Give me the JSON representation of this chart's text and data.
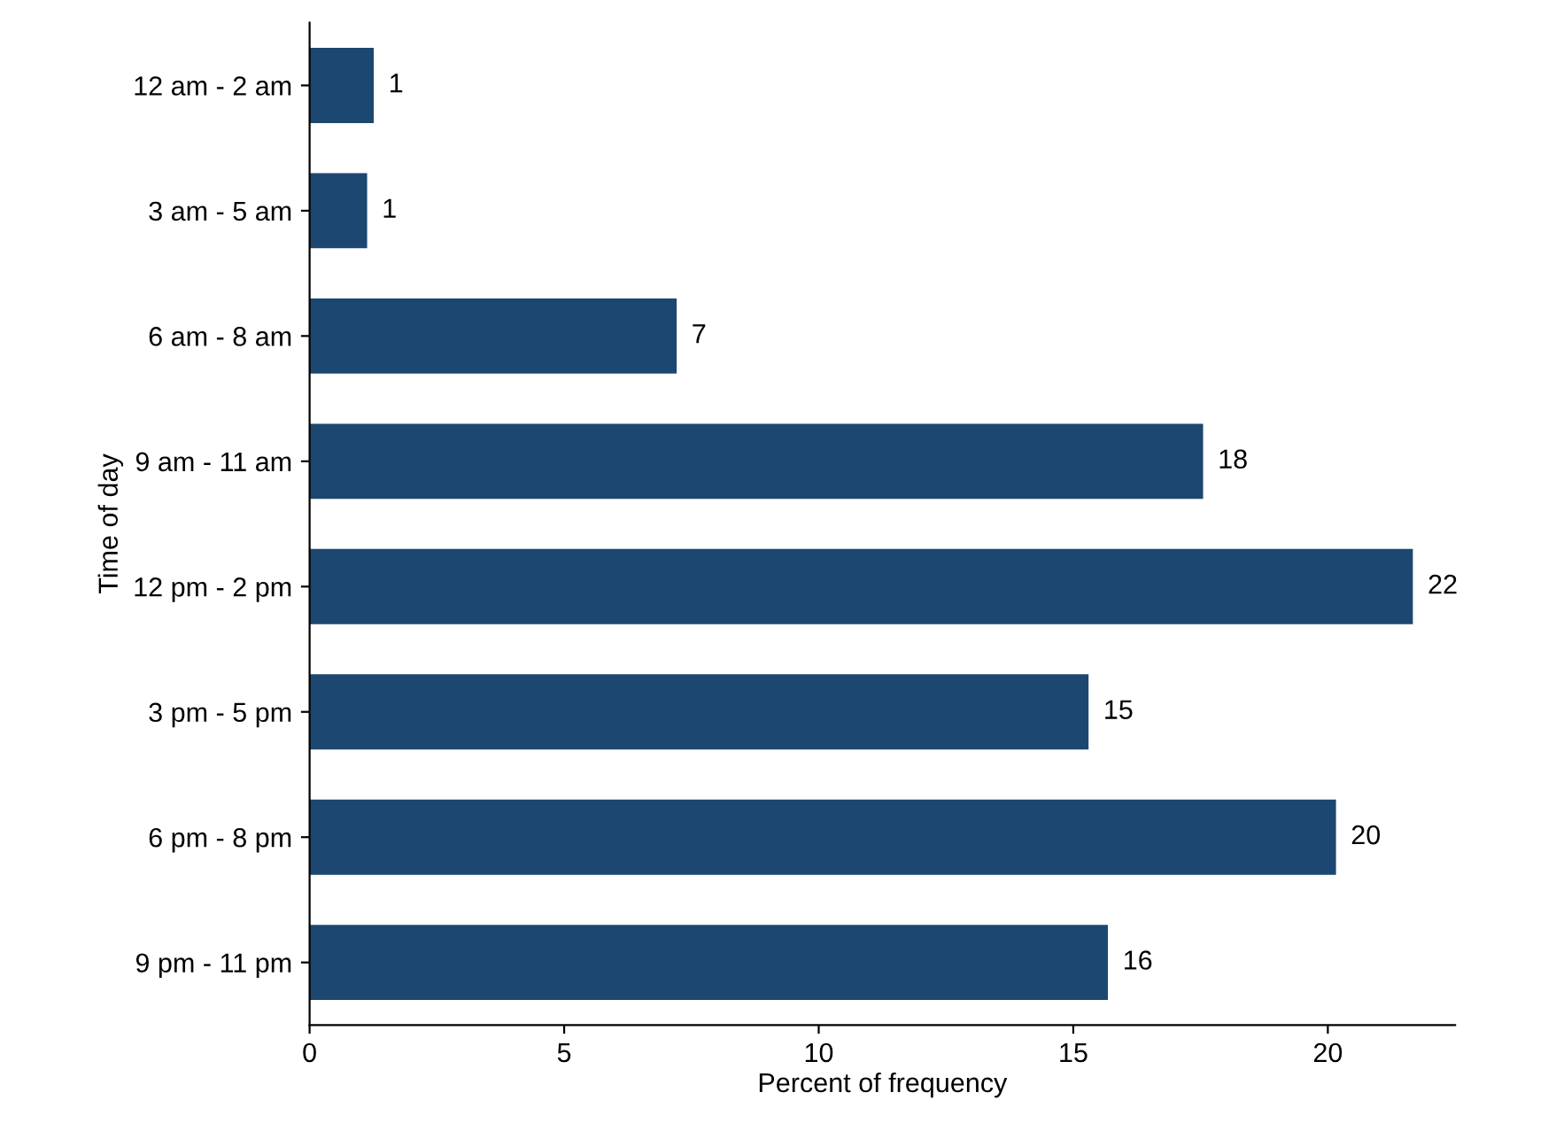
{
  "chart_data": {
    "type": "bar",
    "orientation": "horizontal",
    "xlabel": "Percent of frequency",
    "ylabel": "Time of day",
    "categories": [
      "12 am - 2 am",
      "3 am - 5 am",
      "6 am - 8 am",
      "9 am - 11 am",
      "12 pm - 2 pm",
      "3 pm - 5 pm",
      "6 pm - 8 pm",
      "9 pm - 11 pm"
    ],
    "values": [
      1.26,
      1.13,
      7.21,
      17.55,
      21.67,
      15.3,
      20.16,
      15.68
    ],
    "value_labels": [
      "1",
      "1",
      "7",
      "18",
      "22",
      "15",
      "20",
      "16"
    ],
    "color": "#1c4770",
    "xlim": [
      0,
      22.5
    ],
    "xticks": [
      0,
      5,
      10,
      15,
      20
    ],
    "grid": false,
    "legend": false
  }
}
